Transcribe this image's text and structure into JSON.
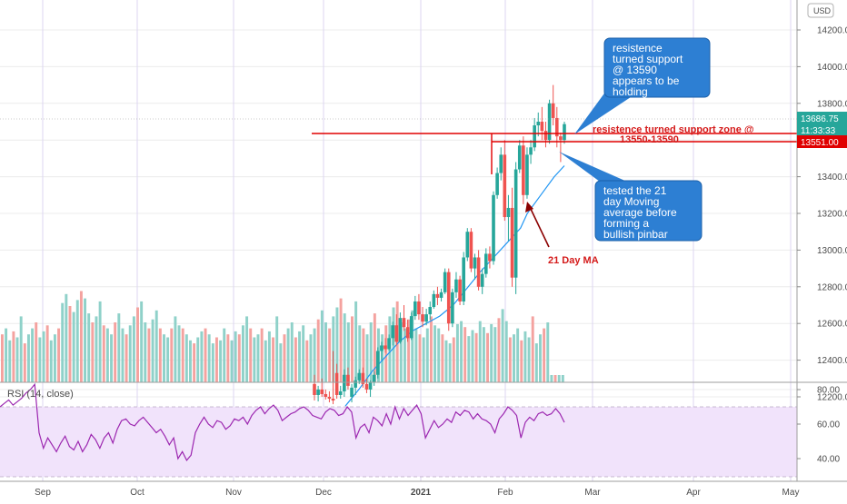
{
  "chart_data": {
    "type": "candlestick",
    "currency": "USD",
    "price_axis": {
      "ticks": [
        "14200.00",
        "14000.00",
        "13800.00",
        "13600.00",
        "13400.00",
        "13200.00",
        "13000.00",
        "12800.00",
        "12600.00",
        "12400.00",
        "12200.00"
      ],
      "range": [
        12150,
        14350
      ]
    },
    "price_labels": {
      "last": "13686.75",
      "countdown": "11:33:33",
      "support": "13551.00"
    },
    "time_axis": {
      "labels": [
        "Sep",
        "Oct",
        "Nov",
        "Dec",
        "2021",
        "Feb",
        "Mar",
        "Apr",
        "May"
      ]
    },
    "candles": [
      {
        "o": 12270,
        "h": 12320,
        "l": 12180,
        "c": 12210
      },
      {
        "o": 12210,
        "h": 12260,
        "l": 12175,
        "c": 12240
      },
      {
        "o": 12240,
        "h": 12300,
        "l": 12200,
        "c": 12215
      },
      {
        "o": 12215,
        "h": 12240,
        "l": 12185,
        "c": 12200
      },
      {
        "o": 12200,
        "h": 12230,
        "l": 12170,
        "c": 12190
      },
      {
        "o": 12190,
        "h": 12450,
        "l": 12160,
        "c": 12180
      },
      {
        "o": 12330,
        "h": 12380,
        "l": 12190,
        "c": 12210
      },
      {
        "o": 12210,
        "h": 12260,
        "l": 12190,
        "c": 12230
      },
      {
        "o": 12230,
        "h": 12350,
        "l": 12200,
        "c": 12320
      },
      {
        "o": 12320,
        "h": 12360,
        "l": 12240,
        "c": 12260
      },
      {
        "o": 12200,
        "h": 12270,
        "l": 12170,
        "c": 12250
      },
      {
        "o": 12250,
        "h": 12310,
        "l": 12210,
        "c": 12290
      },
      {
        "o": 12290,
        "h": 12350,
        "l": 12270,
        "c": 12330
      },
      {
        "o": 12330,
        "h": 12360,
        "l": 12250,
        "c": 12270
      },
      {
        "o": 12270,
        "h": 12300,
        "l": 12220,
        "c": 12240
      },
      {
        "o": 12240,
        "h": 12290,
        "l": 12200,
        "c": 12280
      },
      {
        "o": 12280,
        "h": 12340,
        "l": 12260,
        "c": 12320
      },
      {
        "o": 12320,
        "h": 12470,
        "l": 12300,
        "c": 12450
      },
      {
        "o": 12450,
        "h": 12500,
        "l": 12400,
        "c": 12480
      },
      {
        "o": 12480,
        "h": 12520,
        "l": 12440,
        "c": 12460
      },
      {
        "o": 12460,
        "h": 12540,
        "l": 12450,
        "c": 12520
      },
      {
        "o": 12520,
        "h": 12610,
        "l": 12480,
        "c": 12590
      },
      {
        "o": 12590,
        "h": 12650,
        "l": 12480,
        "c": 12500
      },
      {
        "o": 12500,
        "h": 12660,
        "l": 12490,
        "c": 12630
      },
      {
        "o": 12630,
        "h": 12700,
        "l": 12560,
        "c": 12580
      },
      {
        "o": 12580,
        "h": 12620,
        "l": 12500,
        "c": 12520
      },
      {
        "o": 12520,
        "h": 12660,
        "l": 12510,
        "c": 12640
      },
      {
        "o": 12640,
        "h": 12750,
        "l": 12620,
        "c": 12720
      },
      {
        "o": 12720,
        "h": 12760,
        "l": 12620,
        "c": 12650
      },
      {
        "o": 12650,
        "h": 12690,
        "l": 12580,
        "c": 12610
      },
      {
        "o": 12610,
        "h": 12680,
        "l": 12590,
        "c": 12650
      },
      {
        "o": 12650,
        "h": 12720,
        "l": 12620,
        "c": 12690
      },
      {
        "o": 12690,
        "h": 12780,
        "l": 12680,
        "c": 12760
      },
      {
        "o": 12760,
        "h": 12800,
        "l": 12700,
        "c": 12740
      },
      {
        "o": 12740,
        "h": 12790,
        "l": 12720,
        "c": 12770
      },
      {
        "o": 12770,
        "h": 12900,
        "l": 12760,
        "c": 12880
      },
      {
        "o": 12880,
        "h": 12900,
        "l": 12560,
        "c": 12600
      },
      {
        "o": 12600,
        "h": 12790,
        "l": 12580,
        "c": 12770
      },
      {
        "o": 12770,
        "h": 12880,
        "l": 12740,
        "c": 12840
      },
      {
        "o": 12840,
        "h": 12860,
        "l": 12700,
        "c": 12720
      },
      {
        "o": 12720,
        "h": 12990,
        "l": 12700,
        "c": 12960
      },
      {
        "o": 12960,
        "h": 13120,
        "l": 12940,
        "c": 13100
      },
      {
        "o": 13100,
        "h": 13120,
        "l": 12880,
        "c": 12900
      },
      {
        "o": 12900,
        "h": 12980,
        "l": 12840,
        "c": 12960
      },
      {
        "o": 12960,
        "h": 13000,
        "l": 12780,
        "c": 12800
      },
      {
        "o": 12800,
        "h": 12900,
        "l": 12760,
        "c": 12870
      },
      {
        "o": 12870,
        "h": 13010,
        "l": 12850,
        "c": 12980
      },
      {
        "o": 12980,
        "h": 13020,
        "l": 12900,
        "c": 12940
      },
      {
        "o": 12940,
        "h": 13320,
        "l": 12920,
        "c": 13300
      },
      {
        "o": 13300,
        "h": 13450,
        "l": 13280,
        "c": 13420
      },
      {
        "o": 13420,
        "h": 13560,
        "l": 13380,
        "c": 13520
      },
      {
        "o": 13520,
        "h": 13600,
        "l": 13160,
        "c": 13180
      },
      {
        "o": 13180,
        "h": 13300,
        "l": 13050,
        "c": 13230
      },
      {
        "o": 13230,
        "h": 13340,
        "l": 12800,
        "c": 12850
      },
      {
        "o": 12850,
        "h": 13480,
        "l": 12760,
        "c": 13440
      },
      {
        "o": 13440,
        "h": 13600,
        "l": 13420,
        "c": 13570
      },
      {
        "o": 13570,
        "h": 13620,
        "l": 13250,
        "c": 13300
      },
      {
        "o": 13300,
        "h": 13560,
        "l": 13280,
        "c": 13520
      },
      {
        "o": 13520,
        "h": 13600,
        "l": 13470,
        "c": 13560
      },
      {
        "o": 13560,
        "h": 13720,
        "l": 13540,
        "c": 13680
      },
      {
        "o": 13680,
        "h": 13750,
        "l": 13620,
        "c": 13700
      },
      {
        "o": 13700,
        "h": 13780,
        "l": 13600,
        "c": 13650
      },
      {
        "o": 13650,
        "h": 13700,
        "l": 13560,
        "c": 13600
      },
      {
        "o": 13600,
        "h": 13820,
        "l": 13580,
        "c": 13800
      },
      {
        "o": 13800,
        "h": 13900,
        "l": 13680,
        "c": 13720
      },
      {
        "o": 13720,
        "h": 13780,
        "l": 13560,
        "c": 13620
      },
      {
        "o": 13620,
        "h": 13640,
        "l": 13480,
        "c": 13600
      },
      {
        "o": 13600,
        "h": 13700,
        "l": 13580,
        "c": 13686.75
      }
    ],
    "volume": [
      12360,
      12380,
      12340,
      12370,
      12350,
      12420,
      12330,
      12360,
      12380,
      12400,
      12350,
      12370,
      12390,
      12340,
      12360,
      12380,
      12410,
      12440,
      12400,
      12380,
      12420,
      12450,
      12480,
      12430,
      12400,
      12420,
      12470,
      12390,
      12380,
      12360,
      12400,
      12430,
      12380,
      12360,
      12390,
      12420,
      12450,
      12470,
      12400,
      12380,
      12410,
      12440,
      12380,
      12360,
      12350,
      12380,
      12420,
      12390,
      12380,
      12360,
      12340,
      12330,
      12350,
      12370,
      12380,
      12360,
      12330,
      12350,
      12340,
      12380,
      12360,
      12340,
      12370,
      12360,
      12390,
      12420,
      12380,
      12350
    ],
    "ma21": [
      [
        46,
        12150
      ],
      [
        50,
        12240
      ],
      [
        54,
        12340
      ],
      [
        58,
        12420
      ],
      [
        62,
        12500
      ],
      [
        66,
        12560
      ],
      [
        70,
        12600
      ],
      [
        74,
        12640
      ],
      [
        78,
        12700
      ],
      [
        82,
        12790
      ],
      [
        86,
        12880
      ],
      [
        90,
        12960
      ],
      [
        94,
        13040
      ],
      [
        96,
        13080
      ],
      [
        98,
        13120
      ],
      [
        100,
        13200
      ],
      [
        104,
        13300
      ],
      [
        108,
        13400
      ],
      [
        111,
        13460
      ]
    ],
    "rsi": {
      "label": "RSI (14, close)",
      "ticks": [
        "80.00",
        "60.00",
        "40.00"
      ],
      "range": [
        26,
        84
      ],
      "values": [
        70,
        72,
        74,
        71,
        73,
        75,
        78,
        80,
        83,
        55,
        46,
        52,
        48,
        44,
        49,
        53,
        47,
        45,
        50,
        44,
        48,
        54,
        51,
        46,
        52,
        55,
        49,
        57,
        62,
        63,
        60,
        59,
        62,
        64,
        61,
        58,
        55,
        57,
        53,
        48,
        52,
        40,
        44,
        39,
        42,
        55,
        60,
        64,
        60,
        58,
        62,
        61,
        57,
        59,
        63,
        62,
        64,
        60,
        65,
        68,
        70,
        66,
        69,
        71,
        68,
        62,
        64,
        66,
        67,
        69,
        70,
        68,
        65,
        64,
        63,
        67,
        69,
        68,
        65,
        66,
        70,
        67,
        52,
        58,
        60,
        55,
        64,
        62,
        59,
        66,
        60,
        70,
        63,
        69,
        65,
        68,
        71,
        66,
        52,
        57,
        62,
        58,
        60,
        63,
        61,
        67,
        65,
        68,
        67,
        63,
        66,
        63,
        62,
        60,
        55,
        63,
        66,
        70,
        68,
        65,
        52,
        61,
        64,
        62,
        66,
        67,
        65,
        66,
        69,
        66,
        61
      ]
    },
    "annotations": {
      "support_zone_line1": "resistence turned support zone @",
      "support_zone_line2": "13550-13590",
      "ma_label": "21 Day MA",
      "callout_top": [
        "resistence",
        "turned support",
        "@ 13590",
        "appears to be",
        "holding"
      ],
      "callout_bottom": [
        "tested the 21",
        "day Moving",
        "average before",
        "forming a",
        "bullish pinbar"
      ]
    },
    "colors": {
      "up": "#26a69a",
      "down": "#ef5350",
      "vol_up": "#8fd1c9",
      "vol_down": "#f4a29f",
      "ma": "#2196f3",
      "rsi": "#9c27b0",
      "rsi_band": "#f1e3fb",
      "support": "#e00000",
      "callout": "#2d7fd3",
      "arrow": "#8b0000"
    }
  }
}
